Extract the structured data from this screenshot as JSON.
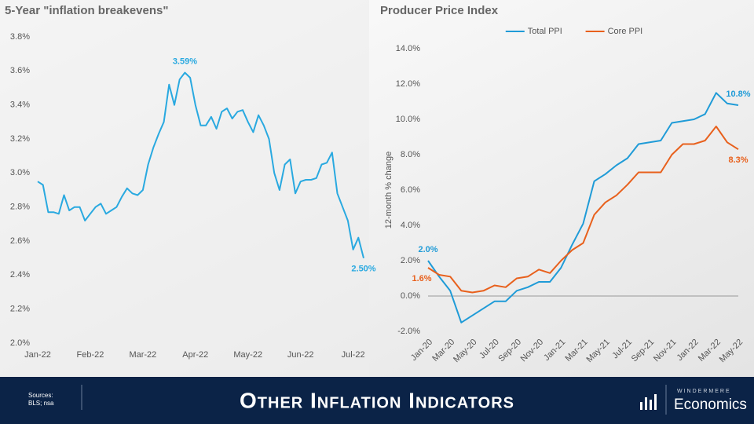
{
  "chart_data": [
    {
      "type": "line",
      "title": "5-Year \"inflation breakevens\"",
      "categories": [
        "Jan-22",
        null,
        null,
        null,
        null,
        null,
        null,
        null,
        null,
        null,
        "Feb-22",
        null,
        null,
        null,
        null,
        null,
        null,
        null,
        null,
        null,
        "Mar-22",
        null,
        null,
        null,
        null,
        null,
        null,
        null,
        null,
        null,
        "Apr-22",
        null,
        null,
        null,
        null,
        null,
        null,
        null,
        null,
        null,
        "May-22",
        null,
        null,
        null,
        null,
        null,
        null,
        null,
        null,
        null,
        "Jun-22",
        null,
        null,
        null,
        null,
        null,
        null,
        null,
        null,
        null,
        "Jul-22",
        null,
        null
      ],
      "values": [
        2.95,
        2.93,
        2.77,
        2.77,
        2.76,
        2.87,
        2.78,
        2.8,
        2.8,
        2.72,
        2.76,
        2.8,
        2.82,
        2.76,
        2.78,
        2.8,
        2.86,
        2.91,
        2.88,
        2.87,
        2.9,
        3.05,
        3.15,
        3.23,
        3.3,
        3.52,
        3.4,
        3.55,
        3.59,
        3.56,
        3.4,
        3.28,
        3.28,
        3.33,
        3.26,
        3.36,
        3.38,
        3.32,
        3.36,
        3.37,
        3.3,
        3.24,
        3.34,
        3.28,
        3.2,
        3.0,
        2.9,
        3.05,
        3.08,
        2.88,
        2.95,
        2.96,
        2.96,
        2.97,
        3.05,
        3.06,
        3.12,
        2.88,
        2.8,
        2.72,
        2.55,
        2.62,
        2.5
      ],
      "value_labels": [
        null,
        null,
        null,
        null,
        null,
        null,
        null,
        null,
        null,
        null,
        null,
        null,
        null,
        null,
        null,
        null,
        null,
        null,
        null,
        null,
        null,
        null,
        null,
        null,
        null,
        null,
        null,
        null,
        "3.59%",
        null,
        null,
        null,
        null,
        null,
        null,
        null,
        null,
        null,
        null,
        null,
        null,
        null,
        null,
        null,
        null,
        null,
        null,
        null,
        null,
        null,
        null,
        null,
        null,
        null,
        null,
        null,
        null,
        null,
        null,
        null,
        null,
        null,
        "2.50%"
      ],
      "color": "#29a9e0",
      "ylim": [
        2.0,
        3.8
      ],
      "yticks": [
        {
          "value": 2.0,
          "label": "2.0%"
        },
        {
          "value": 2.2,
          "label": "2.2%"
        },
        {
          "value": 2.4,
          "label": "2.4%"
        },
        {
          "value": 2.6,
          "label": "2.6%"
        },
        {
          "value": 2.8,
          "label": "2.8%"
        },
        {
          "value": 3.0,
          "label": "3.0%"
        },
        {
          "value": 3.2,
          "label": "3.2%"
        },
        {
          "value": 3.4,
          "label": "3.4%"
        },
        {
          "value": 3.6,
          "label": "3.6%"
        },
        {
          "value": 3.8,
          "label": "3.8%"
        }
      ]
    },
    {
      "type": "line",
      "title": "Producer Price Index",
      "y_label": "12-month % change",
      "legend": "top",
      "categories": [
        "Jan-20",
        null,
        "Mar-20",
        null,
        "May-20",
        null,
        "Jul-20",
        null,
        "Sep-20",
        null,
        "Nov-20",
        null,
        "Jan-21",
        null,
        "Mar-21",
        null,
        "May-21",
        null,
        "Jul-21",
        null,
        "Sep-21",
        null,
        "Nov-21",
        null,
        "Jan-22",
        null,
        "Mar-22",
        null,
        "May-22"
      ],
      "series": [
        {
          "name": "Total PPI",
          "color": "#1f9bd7",
          "values": [
            2.0,
            1.1,
            0.3,
            -1.5,
            -1.1,
            -0.7,
            -0.3,
            -0.3,
            0.3,
            0.5,
            0.8,
            0.8,
            1.6,
            2.9,
            4.1,
            6.5,
            6.9,
            7.4,
            7.8,
            8.6,
            8.7,
            8.8,
            9.8,
            9.9,
            10.0,
            10.3,
            11.5,
            10.9,
            10.8
          ],
          "value_labels": [
            "2.0%",
            null,
            null,
            null,
            null,
            null,
            null,
            null,
            null,
            null,
            null,
            null,
            null,
            null,
            null,
            null,
            null,
            null,
            null,
            null,
            null,
            null,
            null,
            null,
            null,
            null,
            null,
            null,
            "10.8%"
          ]
        },
        {
          "name": "Core PPI",
          "color": "#e8601c",
          "values": [
            1.6,
            1.2,
            1.1,
            0.3,
            0.2,
            0.3,
            0.6,
            0.5,
            1.0,
            1.1,
            1.5,
            1.3,
            2.0,
            2.6,
            3.0,
            4.6,
            5.3,
            5.7,
            6.3,
            7.0,
            7.0,
            7.0,
            8.0,
            8.6,
            8.6,
            8.8,
            9.6,
            8.7,
            8.3
          ],
          "value_labels": [
            "1.6%",
            null,
            null,
            null,
            null,
            null,
            null,
            null,
            null,
            null,
            null,
            null,
            null,
            null,
            null,
            null,
            null,
            null,
            null,
            null,
            null,
            null,
            null,
            null,
            null,
            null,
            null,
            null,
            "8.3%"
          ]
        }
      ],
      "ylim": [
        -2.0,
        14.0
      ],
      "yticks": [
        {
          "value": -2.0,
          "label": "-2.0%"
        },
        {
          "value": 0.0,
          "label": "0.0%"
        },
        {
          "value": 2.0,
          "label": "2.0%"
        },
        {
          "value": 4.0,
          "label": "4.0%"
        },
        {
          "value": 6.0,
          "label": "6.0%"
        },
        {
          "value": 8.0,
          "label": "8.0%"
        },
        {
          "value": 10.0,
          "label": "10.0%"
        },
        {
          "value": 12.0,
          "label": "12.0%"
        },
        {
          "value": 14.0,
          "label": "14.0%"
        }
      ]
    }
  ],
  "footer": {
    "sources_title": "Sources:",
    "sources": "BLS; nsa",
    "title": "Other Inflation Indicators",
    "brand": "WINDERMERE",
    "brand_sub": "Economics"
  }
}
